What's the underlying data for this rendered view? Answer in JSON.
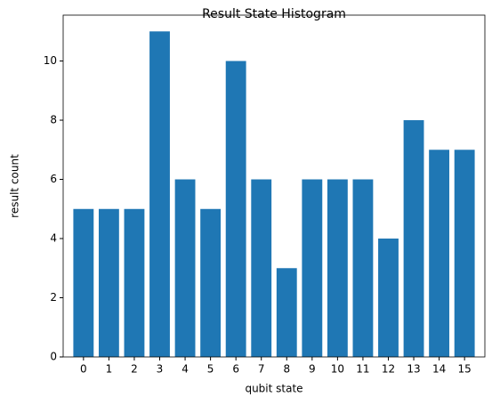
{
  "chart_data": {
    "type": "bar",
    "title": "Result State Histogram",
    "x_label": "qubit state",
    "y_label": "result count",
    "categories": [
      "0",
      "1",
      "2",
      "3",
      "4",
      "5",
      "6",
      "7",
      "8",
      "9",
      "10",
      "11",
      "12",
      "13",
      "14",
      "15"
    ],
    "values": [
      5,
      5,
      5,
      11,
      6,
      5,
      10,
      6,
      3,
      6,
      6,
      6,
      4,
      8,
      7,
      7
    ],
    "color": "#1f77b4",
    "ylim": [
      0,
      11.55
    ],
    "yticks": [
      0,
      2,
      4,
      6,
      8,
      10
    ],
    "grid": false
  }
}
